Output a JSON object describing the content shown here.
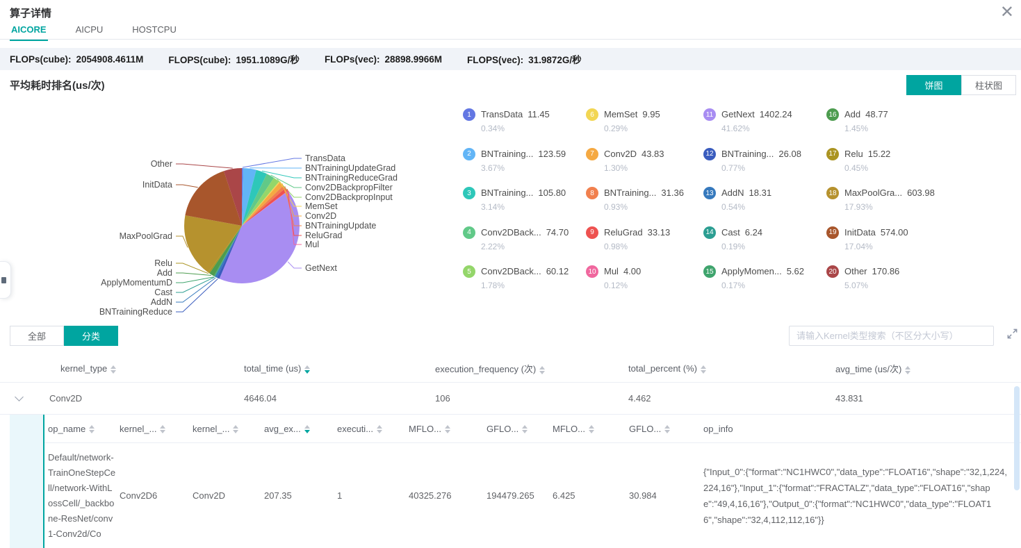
{
  "header": {
    "title": "算子详情",
    "close_label": "✕"
  },
  "tabs": [
    {
      "label": "AICORE",
      "active": true
    },
    {
      "label": "AICPU",
      "active": false
    },
    {
      "label": "HOSTCPU",
      "active": false
    }
  ],
  "stats": [
    {
      "label": "FLOPs(cube):",
      "value": "2054908.4611M"
    },
    {
      "label": "FLOPS(cube):",
      "value": "1951.1089G/秒"
    },
    {
      "label": "FLOPs(vec):",
      "value": "28898.9966M"
    },
    {
      "label": "FLOPS(vec):",
      "value": "31.9872G/秒"
    }
  ],
  "section": {
    "title": "平均耗时排名(us/次)",
    "toggle": [
      {
        "label": "饼图",
        "active": true
      },
      {
        "label": "柱状图",
        "active": false
      }
    ]
  },
  "chart_data": {
    "type": "pie",
    "title": "平均耗时排名(us/次)",
    "value_unit": "us/次",
    "start_angle": "12-oclock-clockwise",
    "legend_position": "right",
    "slices": [
      {
        "rank": 1,
        "name": "TransData",
        "legend_label": "TransData",
        "value": 11.45,
        "percent": 0.34,
        "color": "#6377e3"
      },
      {
        "rank": 2,
        "name": "BNTrainingUpdateGrad",
        "legend_label": "BNTraining...",
        "value": 123.59,
        "percent": 3.67,
        "color": "#62b5f6"
      },
      {
        "rank": 3,
        "name": "BNTrainingReduceGrad",
        "legend_label": "BNTraining...",
        "value": 105.8,
        "percent": 3.14,
        "color": "#2ec7b9"
      },
      {
        "rank": 4,
        "name": "Conv2DBackpropFilter",
        "legend_label": "Conv2DBack...",
        "value": 74.7,
        "percent": 2.22,
        "color": "#61c988"
      },
      {
        "rank": 5,
        "name": "Conv2DBackpropInput",
        "legend_label": "Conv2DBack...",
        "value": 60.12,
        "percent": 1.78,
        "color": "#94d66a"
      },
      {
        "rank": 6,
        "name": "MemSet",
        "legend_label": "MemSet",
        "value": 9.95,
        "percent": 0.29,
        "color": "#f2d653"
      },
      {
        "rank": 7,
        "name": "Conv2D",
        "legend_label": "Conv2D",
        "value": 43.83,
        "percent": 1.3,
        "color": "#f5a942"
      },
      {
        "rank": 8,
        "name": "BNTrainingUpdate",
        "legend_label": "BNTraining...",
        "value": 31.36,
        "percent": 0.93,
        "color": "#f1804e"
      },
      {
        "rank": 9,
        "name": "ReluGrad",
        "legend_label": "ReluGrad",
        "value": 33.13,
        "percent": 0.98,
        "color": "#ee5250"
      },
      {
        "rank": 10,
        "name": "Mul",
        "legend_label": "Mul",
        "value": 4.0,
        "percent": 0.12,
        "color": "#f0679e"
      },
      {
        "rank": 11,
        "name": "GetNext",
        "legend_label": "GetNext",
        "value": 1402.24,
        "percent": 41.62,
        "color": "#a88df2"
      },
      {
        "rank": 12,
        "name": "BNTrainingReduce",
        "legend_label": "BNTraining...",
        "value": 26.08,
        "percent": 0.77,
        "color": "#3a5cbe"
      },
      {
        "rank": 13,
        "name": "AddN",
        "legend_label": "AddN",
        "value": 18.31,
        "percent": 0.54,
        "color": "#3679bd"
      },
      {
        "rank": 14,
        "name": "Cast",
        "legend_label": "Cast",
        "value": 6.24,
        "percent": 0.19,
        "color": "#2c9e92"
      },
      {
        "rank": 15,
        "name": "ApplyMomentumD",
        "legend_label": "ApplyMomen...",
        "value": 5.62,
        "percent": 0.17,
        "color": "#3fa46d"
      },
      {
        "rank": 16,
        "name": "Add",
        "legend_label": "Add",
        "value": 48.77,
        "percent": 1.45,
        "color": "#4d9c4f"
      },
      {
        "rank": 17,
        "name": "Relu",
        "legend_label": "Relu",
        "value": 15.22,
        "percent": 0.45,
        "color": "#ab9422"
      },
      {
        "rank": 18,
        "name": "MaxPoolGrad",
        "legend_label": "MaxPoolGra...",
        "value": 603.98,
        "percent": 17.93,
        "color": "#b6922e"
      },
      {
        "rank": 19,
        "name": "InitData",
        "legend_label": "InitData",
        "value": 574.0,
        "percent": 17.04,
        "color": "#a8562c"
      },
      {
        "rank": 20,
        "name": "Other",
        "legend_label": "Other",
        "value": 170.86,
        "percent": 5.07,
        "color": "#aa4648"
      }
    ]
  },
  "filter": {
    "buttons": [
      {
        "label": "全部",
        "active": false
      },
      {
        "label": "分类",
        "active": true
      }
    ],
    "search_placeholder": "请输入Kernel类型搜索（不区分大小写）"
  },
  "table": {
    "columns": [
      {
        "label": "kernel_type",
        "sort": "none"
      },
      {
        "label": "total_time (us)",
        "sort": "desc"
      },
      {
        "label": "execution_frequency (次)",
        "sort": "none"
      },
      {
        "label": "total_percent (%)",
        "sort": "none"
      },
      {
        "label": "avg_time (us/次)",
        "sort": "none"
      }
    ],
    "rows": [
      {
        "expanded": true,
        "kernel_type": "Conv2D",
        "total_time": "4646.04",
        "execution_frequency": "106",
        "total_percent": "4.462",
        "avg_time": "43.831"
      }
    ]
  },
  "subtable": {
    "columns": [
      {
        "label": "op_name",
        "sort": "none"
      },
      {
        "label": "kernel_...",
        "sort": "none"
      },
      {
        "label": "kernel_...",
        "sort": "none"
      },
      {
        "label": "avg_ex...",
        "sort": "desc"
      },
      {
        "label": "executi...",
        "sort": "none"
      },
      {
        "label": "MFLO...",
        "sort": "none"
      },
      {
        "label": "GFLO...",
        "sort": "none"
      },
      {
        "label": "MFLO...",
        "sort": "none"
      },
      {
        "label": "GFLO...",
        "sort": "none"
      },
      {
        "label": "op_info",
        "sort": null
      }
    ],
    "rows": [
      {
        "op_name": "Default/network-TrainOneStepCell/network-WithLossCell/_backbone-ResNet/conv1-Conv2d/Co",
        "kernel_name": "Conv2D6",
        "kernel_type": "Conv2D",
        "avg_execution_time": "207.35",
        "execution_frequency": "1",
        "mflo_1": "40325.276",
        "gflo_1": "194479.265",
        "mflo_2": "6.425",
        "gflo_2": "30.984",
        "op_info": "{\"Input_0\":{\"format\":\"NC1HWC0\",\"data_type\":\"FLOAT16\",\"shape\":\"32,1,224,224,16\"},\"Input_1\":{\"format\":\"FRACTALZ\",\"data_type\":\"FLOAT16\",\"shape\":\"49,4,16,16\"},\"Output_0\":{\"format\":\"NC1HWC0\",\"data_type\":\"FLOAT16\",\"shape\":\"32,4,112,112,16\"}}"
      }
    ]
  }
}
